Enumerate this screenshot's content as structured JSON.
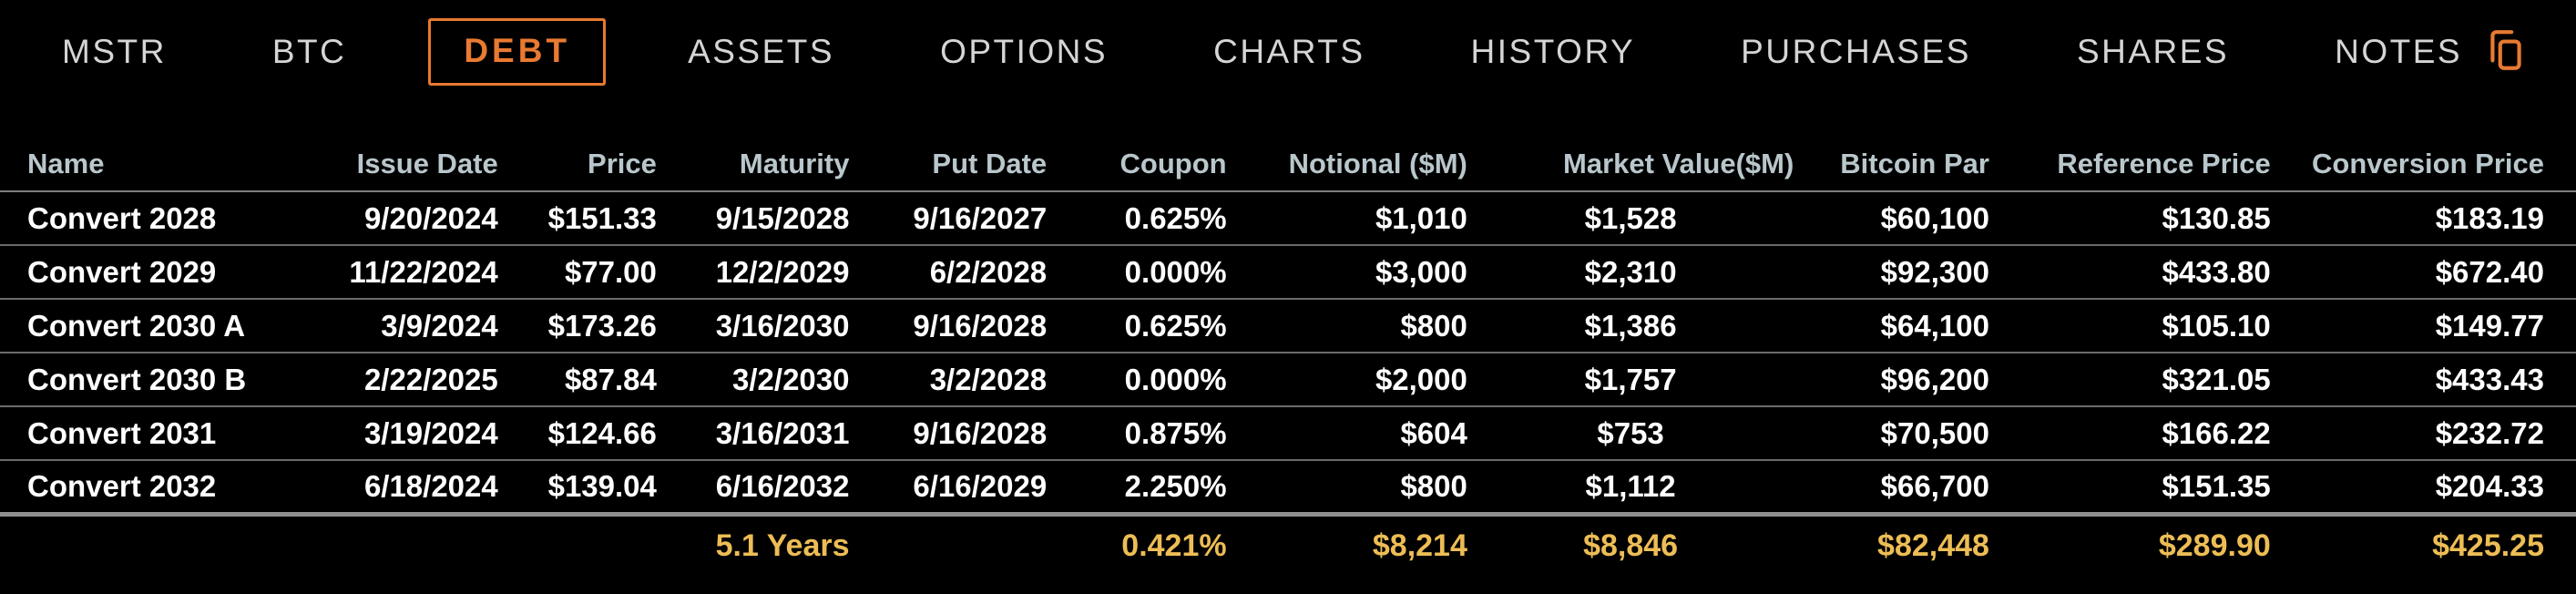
{
  "colors": {
    "accent": "#e87a31",
    "totals_text": "#edbd55",
    "header_text": "#b9c7cc",
    "row_text": "#ffffff",
    "background": "#000000"
  },
  "nav": {
    "tabs": [
      {
        "label": "MSTR",
        "active": false
      },
      {
        "label": "BTC",
        "active": false
      },
      {
        "label": "DEBT",
        "active": true
      },
      {
        "label": "ASSETS",
        "active": false
      },
      {
        "label": "OPTIONS",
        "active": false
      },
      {
        "label": "CHARTS",
        "active": false
      },
      {
        "label": "HISTORY",
        "active": false
      },
      {
        "label": "PURCHASES",
        "active": false
      },
      {
        "label": "SHARES",
        "active": false
      },
      {
        "label": "NOTES",
        "active": false
      }
    ],
    "copy_icon": "copy-icon"
  },
  "table": {
    "columns": [
      "Name",
      "Issue Date",
      "Price",
      "Maturity",
      "Put Date",
      "Coupon",
      "Notional ($M)",
      "Market Value($M)",
      "Bitcoin Par",
      "Reference Price",
      "Conversion Price"
    ],
    "rows": [
      [
        "Convert 2028",
        "9/20/2024",
        "$151.33",
        "9/15/2028",
        "9/16/2027",
        "0.625%",
        "$1,010",
        "$1,528",
        "$60,100",
        "$130.85",
        "$183.19"
      ],
      [
        "Convert 2029",
        "11/22/2024",
        "$77.00",
        "12/2/2029",
        "6/2/2028",
        "0.000%",
        "$3,000",
        "$2,310",
        "$92,300",
        "$433.80",
        "$672.40"
      ],
      [
        "Convert 2030 A",
        "3/9/2024",
        "$173.26",
        "3/16/2030",
        "9/16/2028",
        "0.625%",
        "$800",
        "$1,386",
        "$64,100",
        "$105.10",
        "$149.77"
      ],
      [
        "Convert 2030 B",
        "2/22/2025",
        "$87.84",
        "3/2/2030",
        "3/2/2028",
        "0.000%",
        "$2,000",
        "$1,757",
        "$96,200",
        "$321.05",
        "$433.43"
      ],
      [
        "Convert 2031",
        "3/19/2024",
        "$124.66",
        "3/16/2031",
        "9/16/2028",
        "0.875%",
        "$604",
        "$753",
        "$70,500",
        "$166.22",
        "$232.72"
      ],
      [
        "Convert 2032",
        "6/18/2024",
        "$139.04",
        "6/16/2032",
        "6/16/2029",
        "2.250%",
        "$800",
        "$1,112",
        "$66,700",
        "$151.35",
        "$204.33"
      ]
    ],
    "totals": [
      "",
      "",
      "",
      "5.1 Years",
      "",
      "0.421%",
      "$8,214",
      "$8,846",
      "$82,448",
      "$289.90",
      "$425.25"
    ]
  }
}
